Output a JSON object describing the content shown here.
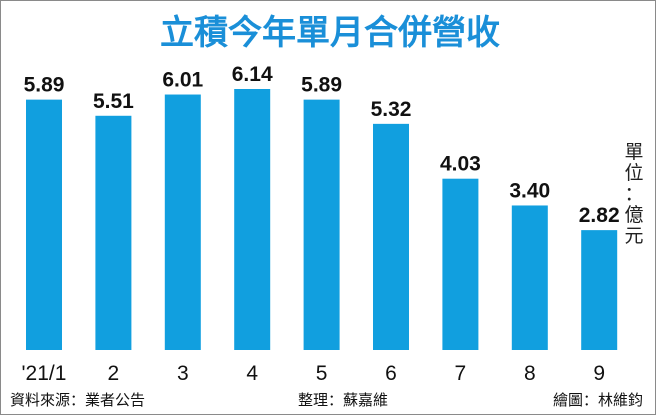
{
  "chart_data": {
    "type": "bar",
    "title": "立積今年單月合併營收",
    "categories": [
      "'21/1",
      "2",
      "3",
      "4",
      "5",
      "6",
      "7",
      "8",
      "9"
    ],
    "values": [
      5.89,
      5.51,
      6.01,
      6.14,
      5.89,
      5.32,
      4.03,
      3.4,
      2.82
    ],
    "value_labels": [
      "5.89",
      "5.51",
      "6.01",
      "6.14",
      "5.89",
      "5.32",
      "4.03",
      "3.40",
      "2.82"
    ],
    "unit": "單位：億元",
    "ylim": [
      0,
      6.14
    ],
    "grid": false,
    "bar_color": "#119fdf",
    "title_color": "#1a8fd8"
  },
  "footer": {
    "source": "資料來源：業者公告",
    "editor": "整理：蘇嘉維",
    "illustrator": "繪圖：林維鈞"
  }
}
